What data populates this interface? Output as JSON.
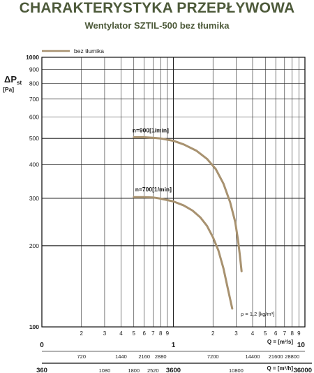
{
  "header": {
    "title": "CHARAKTERYSTYKA PRZEPŁYWOWA",
    "subtitle": "Wentylator SZTIL-500 bez tłumika"
  },
  "chart_data": {
    "type": "line",
    "title": "CHARAKTERYSTYKA PRZEPŁYWOWA",
    "subtitle": "Wentylator SZTIL-500 bez tłumika",
    "ylabel_main": "ΔP",
    "ylabel_sub": "st",
    "ylabel_unit": "[Pa]",
    "y_scale": "log",
    "x_scale": "log",
    "ylim": [
      100,
      1000
    ],
    "xlim": [
      0.1,
      10
    ],
    "y_ticks": [
      "100",
      "200",
      "300",
      "400",
      "500",
      "600",
      "700",
      "800",
      "900",
      "1000"
    ],
    "x_ticks_minor": [
      "2",
      "3",
      "4",
      "5",
      "6",
      "7",
      "8",
      "9",
      "2",
      "3",
      "4",
      "5",
      "6",
      "7",
      "8",
      "9"
    ],
    "x_label_bold": [
      "0",
      "1",
      "10"
    ],
    "x_label_ms": "Q = [m³/s]",
    "x_label_mh": "Q = [m³/h]",
    "m3h_upper_ticks": [
      "720",
      "1440",
      "2160",
      "2880",
      "7200",
      "14400",
      "21600",
      "28800"
    ],
    "m3h_lower_ticks": [
      "1080",
      "1800",
      "2520",
      "10800"
    ],
    "m3h_lower_bold": [
      "360",
      "3600",
      "36000"
    ],
    "legend_entry": "bez tłumika",
    "legend_color": "#a89270",
    "annotation_density": "ρ = 1,2 [kg/m³]",
    "series": [
      {
        "name": "n=900[1/min]",
        "x": [
          0.5,
          0.6,
          0.7,
          0.8,
          1.0,
          1.2,
          1.5,
          1.8,
          2.1,
          2.4,
          2.7,
          2.95,
          3.1,
          3.2,
          3.3
        ],
        "y": [
          505,
          505,
          503,
          500,
          490,
          475,
          450,
          420,
          385,
          340,
          290,
          245,
          210,
          185,
          161
        ]
      },
      {
        "name": "n=700[1/min]",
        "x": [
          0.5,
          0.6,
          0.7,
          0.8,
          1.0,
          1.2,
          1.4,
          1.6,
          1.8,
          2.0,
          2.2,
          2.4,
          2.6,
          2.8
        ],
        "y": [
          303,
          303,
          302,
          299,
          292,
          282,
          270,
          255,
          237,
          215,
          192,
          165,
          138,
          117
        ]
      }
    ]
  }
}
